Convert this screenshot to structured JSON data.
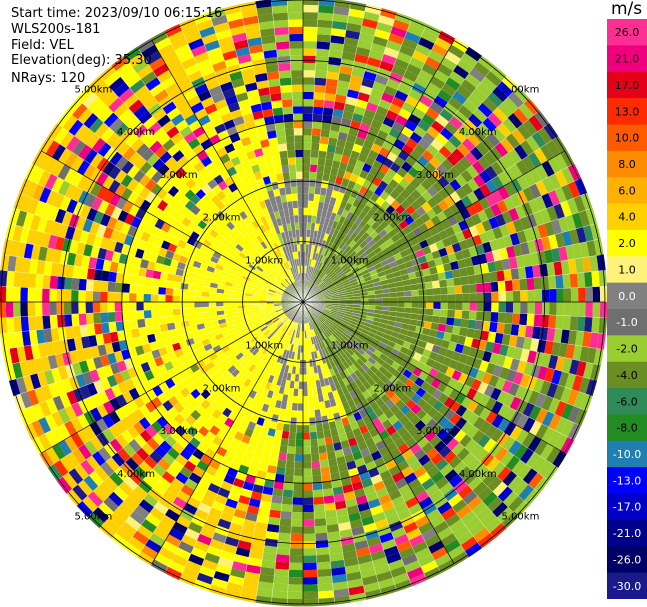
{
  "header": {
    "start_time": "Start time: 2023/09/10 06:15:16",
    "instrument": "WLS200s-181",
    "field": "Field: VEL",
    "elevation": "Elevation(deg): 35.30",
    "nrays": "NRays: 120"
  },
  "chart_data": {
    "type": "heatmap",
    "subtype": "ppi-polar",
    "field": "VEL",
    "units": "m/s",
    "nrays": 120,
    "elevation_deg": 35.3,
    "range_rings_km": [
      1.0,
      2.0,
      3.0,
      4.0,
      5.0
    ],
    "ring_labels": [
      "1.00km",
      "2.00km",
      "3.00km",
      "4.00km",
      "5.00km"
    ],
    "colorbar": {
      "unit": "m/s",
      "ticks": [
        "26.0",
        "21.0",
        "17.0",
        "13.0",
        "10.0",
        "8.0",
        "6.0",
        "4.0",
        "2.0",
        "1.0",
        "0.0",
        "-1.0",
        "-2.0",
        "-4.0",
        "-6.0",
        "-8.0",
        "-10.0",
        "-13.0",
        "-17.0",
        "-21.0",
        "-26.0",
        "-30.0"
      ],
      "colors": [
        "#ff2e95",
        "#f0007e",
        "#e5001a",
        "#ff2a00",
        "#ff5a00",
        "#ff8c00",
        "#ffb000",
        "#ffd000",
        "#ffff00",
        "#fff27a",
        "#808080",
        "#6f6f6f",
        "#9acd32",
        "#6b8e23",
        "#2e8b57",
        "#228b22",
        "#1e7fb0",
        "#0000ff",
        "#0000c8",
        "#00008b",
        "#000066",
        "#1a1a8a"
      ]
    },
    "pattern": {
      "near_ring_west": "yellow (+2 to +4 m/s)",
      "near_ring_east": "olive green (-2 to -4 m/s)",
      "north_south_core": "gray (~0 m/s)",
      "outer_rings": "noisy mixed colors"
    }
  }
}
